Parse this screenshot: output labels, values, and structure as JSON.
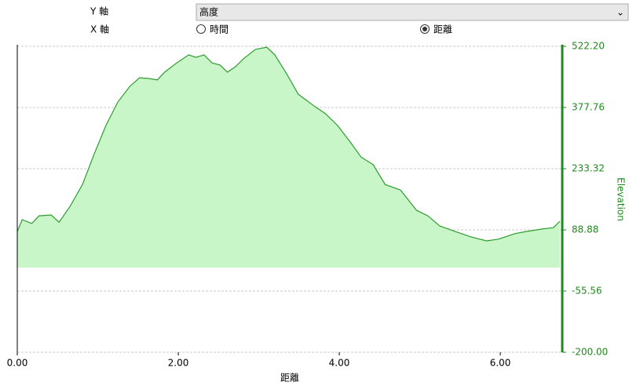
{
  "controls": {
    "y_axis_label": "Y 軸",
    "y_axis_value": "高度",
    "x_axis_label": "X 軸",
    "x_options": [
      {
        "label": "時間",
        "selected": false
      },
      {
        "label": "距離",
        "selected": true
      }
    ]
  },
  "chart_data": {
    "type": "area",
    "x_label": "距離",
    "y_label": "Elevation",
    "color": "#2e9b2e",
    "fill": "#c8f6c8",
    "axis_color": "#1f8a1f",
    "grid": true,
    "x": [
      0,
      0.06,
      0.18,
      0.27,
      0.42,
      0.52,
      0.66,
      0.81,
      0.96,
      1.1,
      1.25,
      1.4,
      1.52,
      1.64,
      1.74,
      1.83,
      1.98,
      2.13,
      2.22,
      2.32,
      2.42,
      2.52,
      2.61,
      2.71,
      2.81,
      2.96,
      3.1,
      3.2,
      3.35,
      3.49,
      3.69,
      3.83,
      3.98,
      4.13,
      4.27,
      4.42,
      4.57,
      4.76,
      4.96,
      5.1,
      5.25,
      5.44,
      5.64,
      5.83,
      5.98,
      6.18,
      6.32,
      6.52,
      6.66,
      6.74
    ],
    "values": [
      85,
      113,
      104,
      122,
      124,
      107,
      146,
      196,
      270,
      335,
      391,
      428,
      448,
      446,
      443,
      461,
      483,
      502,
      496,
      502,
      483,
      478,
      461,
      474,
      493,
      515,
      520,
      502,
      456,
      409,
      381,
      363,
      335,
      298,
      261,
      243,
      196,
      183,
      135,
      122,
      98,
      85,
      72,
      63,
      67,
      80,
      85,
      91,
      94,
      109
    ],
    "xlim": [
      0,
      6.77
    ],
    "xticks": [
      {
        "value": 0,
        "label": "0.00"
      },
      {
        "value": 2,
        "label": "2.00"
      },
      {
        "value": 4,
        "label": "4.00"
      },
      {
        "value": 6,
        "label": "6.00"
      }
    ],
    "ylim": [
      -200,
      522.2
    ],
    "yticks": [
      {
        "value": -200,
        "label": "-200.00"
      },
      {
        "value": -55.56,
        "label": "-55.56"
      },
      {
        "value": 88.88,
        "label": "88.88"
      },
      {
        "value": 233.32,
        "label": "233.32"
      },
      {
        "value": 377.76,
        "label": "377.76"
      },
      {
        "value": 522.2,
        "label": "522.20"
      }
    ]
  }
}
